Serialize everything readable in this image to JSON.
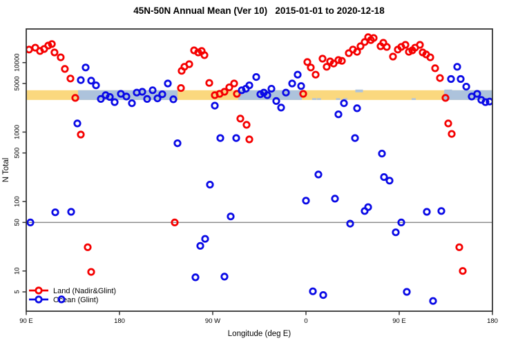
{
  "chart_data": {
    "type": "scatter",
    "title": "45N-50N Annual Mean (Ver 10)   2015-01-01 to 2020-12-18",
    "xlabel": "Longitude (deg E)",
    "ylabel": "N Total",
    "x_axis": {
      "range_unwrapped_deg": [
        90,
        540
      ],
      "ticks": [
        {
          "lon": 90,
          "label": "90 E"
        },
        {
          "lon": 180,
          "label": "180"
        },
        {
          "lon": 270,
          "label": "90 W"
        },
        {
          "lon": 360,
          "label": "0"
        },
        {
          "lon": 450,
          "label": "90 E"
        },
        {
          "lon": 540,
          "label": "180"
        }
      ]
    },
    "y_axis": {
      "scale": "log",
      "range_approx": [
        2.6,
        30500
      ],
      "ticks": [
        {
          "value": 5,
          "label": "5"
        },
        {
          "value": 10,
          "label": "10"
        },
        {
          "value": 50,
          "label": "50"
        },
        {
          "value": 100,
          "label": "100"
        },
        {
          "value": 500,
          "label": "500"
        },
        {
          "value": 1000,
          "label": "1000"
        },
        {
          "value": 5000,
          "label": "5000"
        },
        {
          "value": 10000,
          "label": "10000"
        }
      ]
    },
    "reference_line": {
      "value": 50,
      "color": "#8a8a8a"
    },
    "bands": {
      "orange_band": {
        "value_range": [
          2900,
          4000
        ],
        "lon_range": [
          90,
          540
        ],
        "color": "#FAD87E"
      },
      "blue_band_color": "#ADC3DC",
      "blue_band_segments": [
        [
          140,
          236
        ],
        [
          294.7,
          356
        ],
        [
          493.3,
          540
        ]
      ],
      "blue_specks": [
        [
          224,
          "b"
        ],
        [
          368,
          "b"
        ],
        [
          372.5,
          "b"
        ],
        [
          391,
          "b"
        ],
        [
          398,
          "b"
        ],
        [
          411,
          "t"
        ],
        [
          464,
          "b"
        ],
        [
          497,
          "t"
        ]
      ]
    },
    "legend": {
      "position": "bottom-left",
      "items": [
        {
          "label": "Land (Nadir&Glint)",
          "color": "#F50000"
        },
        {
          "label": "Ocean (Glint)",
          "color": "#0A0AE6"
        }
      ]
    },
    "series": [
      {
        "name": "Land (Nadir&Glint)",
        "color": "#F50000",
        "points": [
          [
            92.7,
            15400
          ],
          [
            98.7,
            16400
          ],
          [
            103.3,
            14700
          ],
          [
            107.3,
            15700
          ],
          [
            111.3,
            17600
          ],
          [
            114.7,
            18500
          ],
          [
            117.3,
            14000
          ],
          [
            123.3,
            11900
          ],
          [
            127.3,
            8100
          ],
          [
            132.7,
            5900
          ],
          [
            137.3,
            3100
          ],
          [
            142.7,
            920
          ],
          [
            149.3,
            22
          ],
          [
            152.7,
            9.7
          ],
          [
            233.3,
            50
          ],
          [
            239.3,
            4300
          ],
          [
            240,
            7600
          ],
          [
            242.7,
            8700
          ],
          [
            247.3,
            9500
          ],
          [
            252,
            15000
          ],
          [
            256,
            14000
          ],
          [
            259.3,
            14700
          ],
          [
            262,
            12800
          ],
          [
            266.7,
            5100
          ],
          [
            272,
            3400
          ],
          [
            276.7,
            3550
          ],
          [
            281.3,
            3800
          ],
          [
            286,
            4400
          ],
          [
            290.7,
            5000
          ],
          [
            293.3,
            3550
          ],
          [
            296.7,
            1560
          ],
          [
            302.7,
            1270
          ],
          [
            305.3,
            785
          ],
          [
            357.3,
            3550
          ],
          [
            361.3,
            10200
          ],
          [
            364.7,
            8500
          ],
          [
            369.3,
            6700
          ],
          [
            376,
            11400
          ],
          [
            380,
            8700
          ],
          [
            383.3,
            10400
          ],
          [
            386.7,
            9700
          ],
          [
            391.3,
            10900
          ],
          [
            394.7,
            10600
          ],
          [
            401.3,
            13700
          ],
          [
            405.3,
            15400
          ],
          [
            409.3,
            14300
          ],
          [
            412.7,
            17200
          ],
          [
            416.7,
            19800
          ],
          [
            420,
            23200
          ],
          [
            422.7,
            21100
          ],
          [
            425.3,
            22600
          ],
          [
            432,
            17200
          ],
          [
            434.7,
            19300
          ],
          [
            438,
            16800
          ],
          [
            444,
            12200
          ],
          [
            448.7,
            15400
          ],
          [
            452,
            16800
          ],
          [
            456,
            18000
          ],
          [
            459.3,
            14300
          ],
          [
            462.7,
            15000
          ],
          [
            465.3,
            16400
          ],
          [
            470,
            18000
          ],
          [
            472.7,
            14000
          ],
          [
            476,
            13100
          ],
          [
            480,
            11900
          ],
          [
            484.7,
            8300
          ],
          [
            489.3,
            6000
          ],
          [
            494.7,
            3100
          ],
          [
            497.3,
            1330
          ],
          [
            500.7,
            940
          ],
          [
            508,
            22
          ],
          [
            511.3,
            10
          ]
        ]
      },
      {
        "name": "Ocean (Glint)",
        "color": "#0A0AE6",
        "points": [
          [
            147.3,
            8500
          ],
          [
            142.7,
            5600
          ],
          [
            152.7,
            5500
          ],
          [
            157.3,
            4700
          ],
          [
            162,
            3000
          ],
          [
            166.7,
            3400
          ],
          [
            170.7,
            3200
          ],
          [
            175.3,
            2700
          ],
          [
            181.3,
            3550
          ],
          [
            186.7,
            3250
          ],
          [
            192,
            2600
          ],
          [
            196.7,
            3700
          ],
          [
            202,
            3800
          ],
          [
            206.7,
            3000
          ],
          [
            212,
            4000
          ],
          [
            216.7,
            3050
          ],
          [
            221.3,
            3500
          ],
          [
            226.7,
            5000
          ],
          [
            232,
            2960
          ],
          [
            272,
            2400
          ],
          [
            298,
            4000
          ],
          [
            302,
            4200
          ],
          [
            305.3,
            4700
          ],
          [
            312,
            6200
          ],
          [
            316,
            3500
          ],
          [
            319.3,
            3700
          ],
          [
            322.7,
            3400
          ],
          [
            326.7,
            4200
          ],
          [
            331.3,
            2800
          ],
          [
            336,
            2250
          ],
          [
            340.7,
            3700
          ],
          [
            346.7,
            5000
          ],
          [
            352,
            6700
          ],
          [
            355.3,
            4600
          ],
          [
            391.3,
            1800
          ],
          [
            396.7,
            2600
          ],
          [
            409.3,
            2200
          ],
          [
            500,
            5800
          ],
          [
            506,
            8700
          ],
          [
            509.3,
            5800
          ],
          [
            514.7,
            4500
          ],
          [
            520,
            3250
          ],
          [
            525.3,
            3550
          ],
          [
            529.3,
            2900
          ],
          [
            533.3,
            2700
          ],
          [
            537.3,
            2750
          ],
          [
            139.3,
            1330
          ],
          [
            236,
            690
          ],
          [
            94,
            50
          ],
          [
            118,
            70
          ],
          [
            133.3,
            71
          ],
          [
            124,
            3.9
          ],
          [
            277.3,
            820
          ],
          [
            292.7,
            820
          ],
          [
            372,
            245
          ],
          [
            267.3,
            175
          ],
          [
            360,
            103
          ],
          [
            388,
            110
          ],
          [
            287.3,
            61
          ],
          [
            262.7,
            29
          ],
          [
            258,
            23
          ],
          [
            253.3,
            8.1
          ],
          [
            281.3,
            8.3
          ],
          [
            366.7,
            5.1
          ],
          [
            376.7,
            4.5
          ],
          [
            407.3,
            820
          ],
          [
            433.3,
            490
          ],
          [
            435.3,
            225
          ],
          [
            440.7,
            200
          ],
          [
            420,
            83
          ],
          [
            416.7,
            73
          ],
          [
            402.7,
            48
          ],
          [
            452,
            50
          ],
          [
            446.7,
            36
          ],
          [
            476.7,
            71
          ],
          [
            490.7,
            73
          ],
          [
            457.3,
            5
          ],
          [
            482.7,
            3.7
          ]
        ]
      }
    ]
  }
}
